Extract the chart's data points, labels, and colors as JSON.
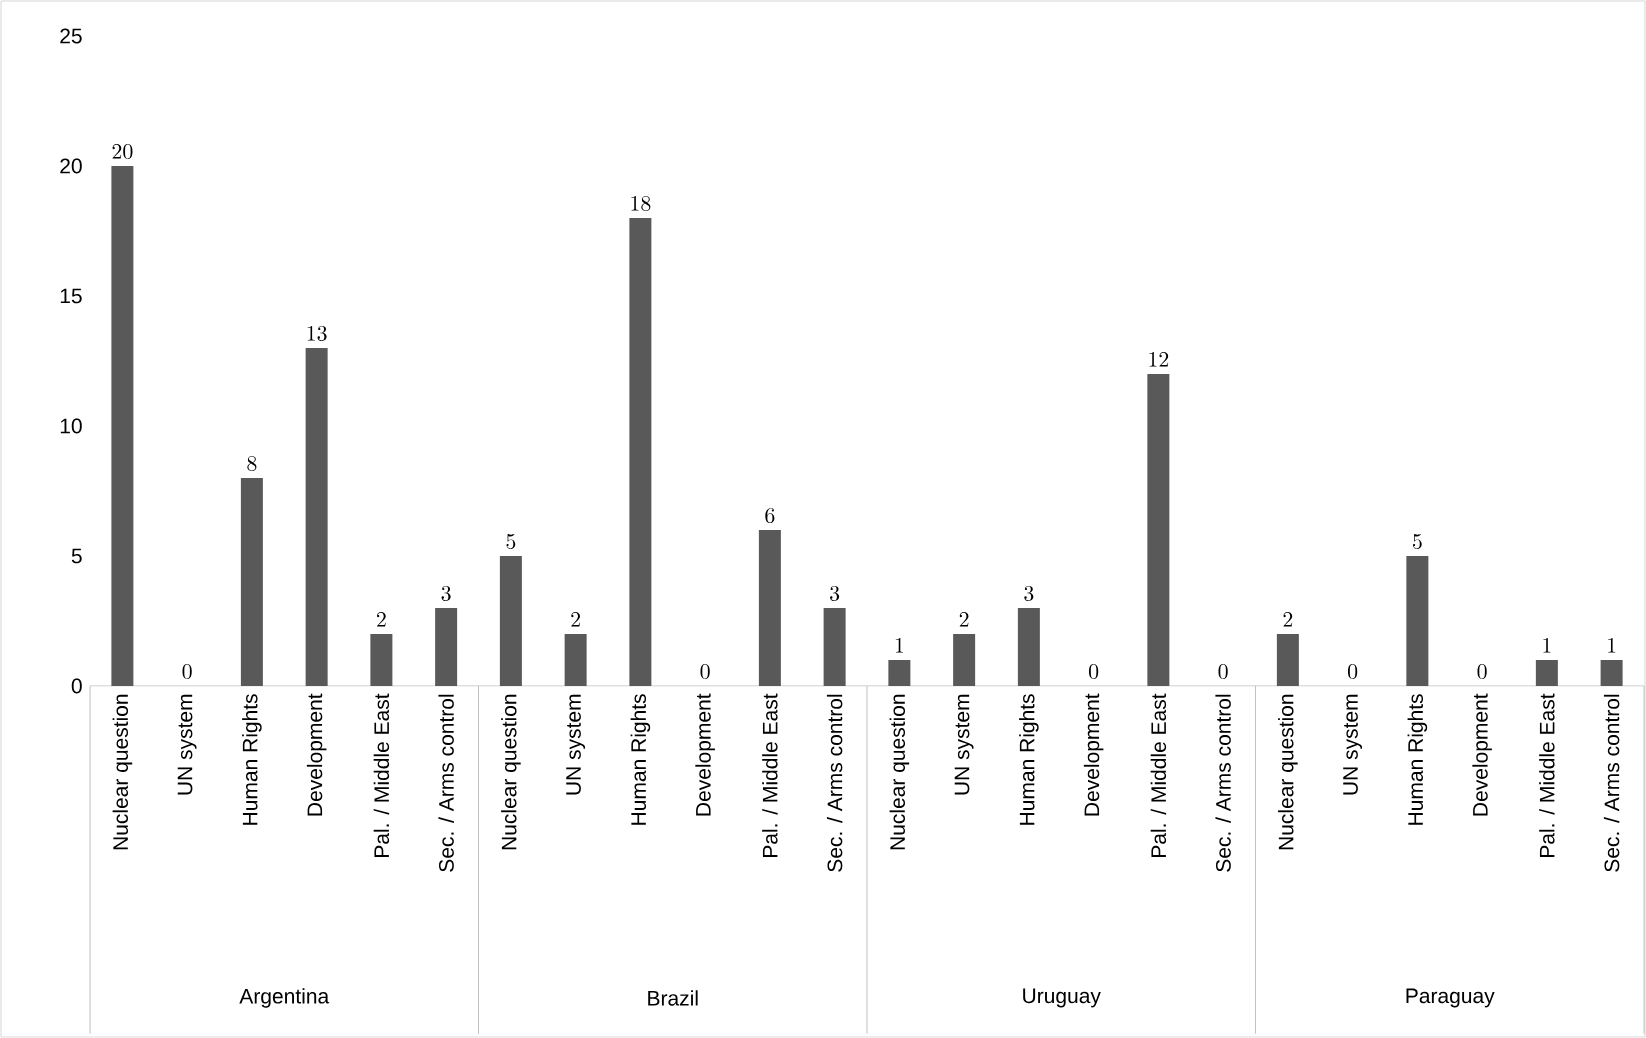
{
  "chart_data": {
    "type": "bar",
    "categories": [
      "Nuclear question",
      "UN system",
      "Human Rights",
      "Development",
      "Pal. / Middle East",
      "Sec. / Arms control",
      "Nuclear question",
      "UN system",
      "Human Rights",
      "Development",
      "Pal. / Middle East",
      "Sec. / Arms control",
      "Nuclear question",
      "UN system",
      "Human Rights",
      "Development",
      "Pal. / Middle East",
      "Sec. / Arms control",
      "Nuclear question",
      "UN system",
      "Human Rights",
      "Development",
      "Pal. / Middle East",
      "Sec. / Arms control"
    ],
    "values": [
      20,
      0,
      8,
      13,
      2,
      3,
      5,
      2,
      18,
      0,
      6,
      3,
      1,
      2,
      3,
      0,
      12,
      0,
      2,
      0,
      5,
      0,
      1,
      1
    ],
    "color": "#595959",
    "annotations": [
      "Argentina",
      "Brazil",
      "Uruguay",
      "Paraguay"
    ],
    "ylim": [
      0,
      25
    ],
    "yticks": [
      0,
      5,
      10,
      15,
      20,
      25
    ],
    "data_labels": true
  }
}
